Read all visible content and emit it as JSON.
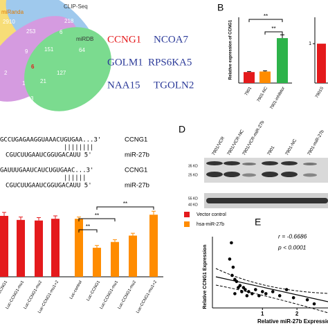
{
  "panel_a": {
    "venn_labels": [
      "miRanda",
      "CLIP-Seq",
      "miRDB"
    ],
    "venn_counts": [
      "2910",
      "218",
      "64",
      "253",
      "6",
      "9",
      "151",
      "2",
      "6",
      "127",
      "1",
      "21",
      "3"
    ],
    "genes": [
      "CCNG1",
      "NCOA7",
      "GOLM1",
      "RPS6KA5",
      "NAA15",
      "TGOLN2"
    ]
  },
  "panel_b": {
    "label": "B",
    "ylabel": "Relative expression of CCNG1",
    "categories": [
      "7901",
      "7901-NC",
      "7901-inhibitor"
    ],
    "values": [
      1,
      1.05,
      4.1
    ],
    "errors": [
      0.05,
      0.07,
      0.3
    ],
    "colors": [
      "#e41a1c",
      "#ff8c00",
      "#2db34a"
    ],
    "ylim": [
      0,
      6
    ],
    "significance": [
      "**",
      "**"
    ]
  },
  "panel_b2": {
    "categories": [
      "7901S"
    ],
    "values": [
      1
    ],
    "color": "#e41a1c",
    "ylim": [
      0,
      1.67
    ],
    "yticks": [
      1
    ]
  },
  "panel_c": {
    "rows": [
      [
        "GCCUGAGAAGGUAAACUGUGAA...3'",
        "CCNG1"
      ],
      [
        "||||||||",
        ""
      ],
      [
        "CGUCUUGAAUCGGUGACAUU    5'",
        "miR-27b"
      ],
      [
        "GAUUUGAAUCAUCUGUGAAC...3'",
        "CCNG1"
      ],
      [
        "||||||",
        ""
      ],
      [
        "CGUCUUGAAUCGGUGACAUU    5'",
        "miR-27b"
      ]
    ]
  },
  "panel_d": {
    "label": "D",
    "lanes": [
      "7901/VCR",
      "7901/VCR-NC",
      "7901/VCR-miR-27b",
      "7901",
      "7901-NC",
      "7901-miR-27b"
    ],
    "markers": [
      "35 KD",
      "25 KD",
      "55 KD",
      "40 KD"
    ]
  },
  "panel_luc": {
    "legend": [
      "Vector control",
      "hsa-miR-27b"
    ],
    "colors": [
      "#e41a1c",
      "#ff8c00"
    ],
    "ylim": [
      0,
      1.3
    ],
    "vector": {
      "categories": [
        "Luc-CCNG1",
        "Luc-CCNG1-mu1",
        "Luc-CCNG1-mu2",
        "Luc-CCNG1-mu1+2"
      ],
      "values": [
        1.05,
        0.98,
        0.97,
        1.0
      ],
      "errors": [
        0.06,
        0.05,
        0.05,
        0.05
      ]
    },
    "mir": {
      "categories": [
        "Luc-control",
        "Luc-CCNG1",
        "Luc-CCNG1-mu1",
        "Luc-CCNG1-mu2",
        "Luc-CCNG1-mu1+2"
      ],
      "values": [
        1.0,
        0.5,
        0.6,
        0.71,
        1.07
      ],
      "errors": [
        0.03,
        0.04,
        0.04,
        0.04,
        0.06
      ]
    },
    "significance": [
      "**",
      "**",
      "**"
    ]
  },
  "panel_e": {
    "label": "E",
    "xlabel": "Relative miR-27b Expression",
    "ylabel": "Relative CCNG1 Expression",
    "annotations": [
      "r = -0.6686",
      "p < 0.0001"
    ],
    "x": [
      0.1,
      0.05,
      0.15,
      0.12,
      0.2,
      0.25,
      0.3,
      0.35,
      0.4,
      0.45,
      0.5,
      0.6,
      0.7,
      0.8,
      0.9,
      1.0,
      1.1,
      1.3,
      1.5,
      1.7,
      1.9,
      2.3,
      2.5,
      0.55,
      0.2
    ],
    "y": [
      16,
      12,
      10,
      8,
      7,
      6.5,
      5,
      5.5,
      4,
      5,
      4.5,
      4,
      3.5,
      4.5,
      3,
      4,
      3.5,
      4,
      3,
      4.5,
      2.5,
      2,
      1,
      3,
      3.5
    ],
    "xlim": [
      -0.45,
      2.9
    ],
    "ylim": [
      0,
      17
    ],
    "xticks": [
      1,
      2
    ]
  }
}
